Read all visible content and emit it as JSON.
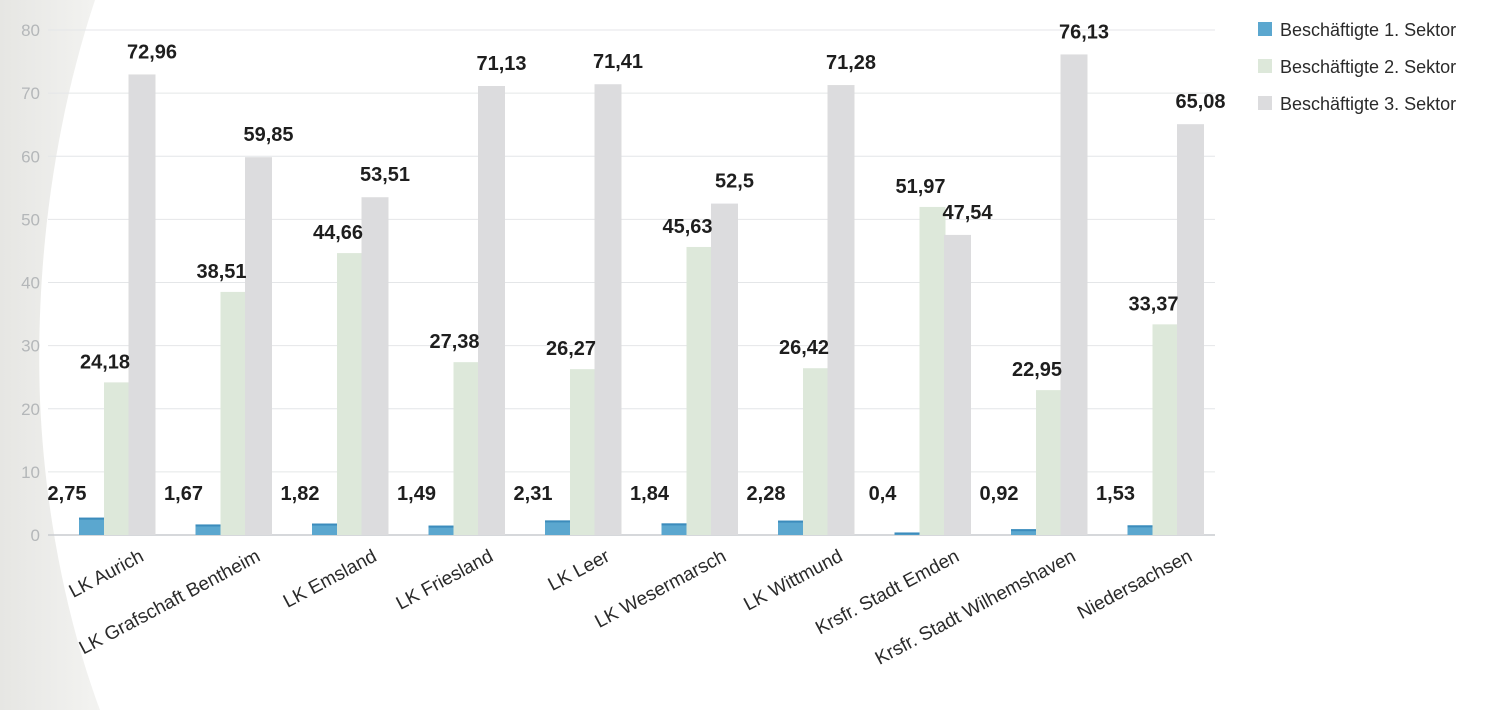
{
  "chart_data": {
    "type": "bar",
    "categories": [
      "LK Aurich",
      "LK Grafschaft Bentheim",
      "LK Emsland",
      "LK Friesland",
      "LK Leer",
      "LK Wesermarsch",
      "LK Wittmund",
      "Krsfr. Stadt Emden",
      "Krsfr. Stadt Wilhemshaven",
      "Niedersachsen"
    ],
    "series": [
      {
        "name": "Beschäftigte 1. Sektor",
        "color": "#5ba7cf",
        "values": [
          2.75,
          1.67,
          1.82,
          1.49,
          2.31,
          1.84,
          2.28,
          0.4,
          0.92,
          1.53
        ],
        "labels": [
          "2,75",
          "1,67",
          "1,82",
          "1,49",
          "2,31",
          "1,84",
          "2,28",
          "0,4",
          "0,92",
          "1,53"
        ]
      },
      {
        "name": "Beschäftigte 2. Sektor",
        "color": "#dde8da",
        "values": [
          24.18,
          38.51,
          44.66,
          27.38,
          26.27,
          45.63,
          26.42,
          51.97,
          22.95,
          33.37
        ],
        "labels": [
          "24,18",
          "38,51",
          "44,66",
          "27,38",
          "26,27",
          "45,63",
          "26,42",
          "51,97",
          "22,95",
          "33,37"
        ]
      },
      {
        "name": "Beschäftigte 3. Sektor",
        "color": "#dcdcde",
        "values": [
          72.96,
          59.85,
          53.51,
          71.13,
          71.41,
          52.5,
          71.28,
          47.54,
          76.13,
          65.08
        ],
        "labels": [
          "72,96",
          "59,85",
          "53,51",
          "71,13",
          "71,41",
          "52,5",
          "71,28",
          "47,54",
          "76,13",
          "65,08"
        ]
      }
    ],
    "yticks": [
      "0",
      "10",
      "20",
      "30",
      "40",
      "50",
      "60",
      "70",
      "80"
    ],
    "ylim": [
      0,
      80
    ],
    "grid": true,
    "legend": "top-right"
  }
}
